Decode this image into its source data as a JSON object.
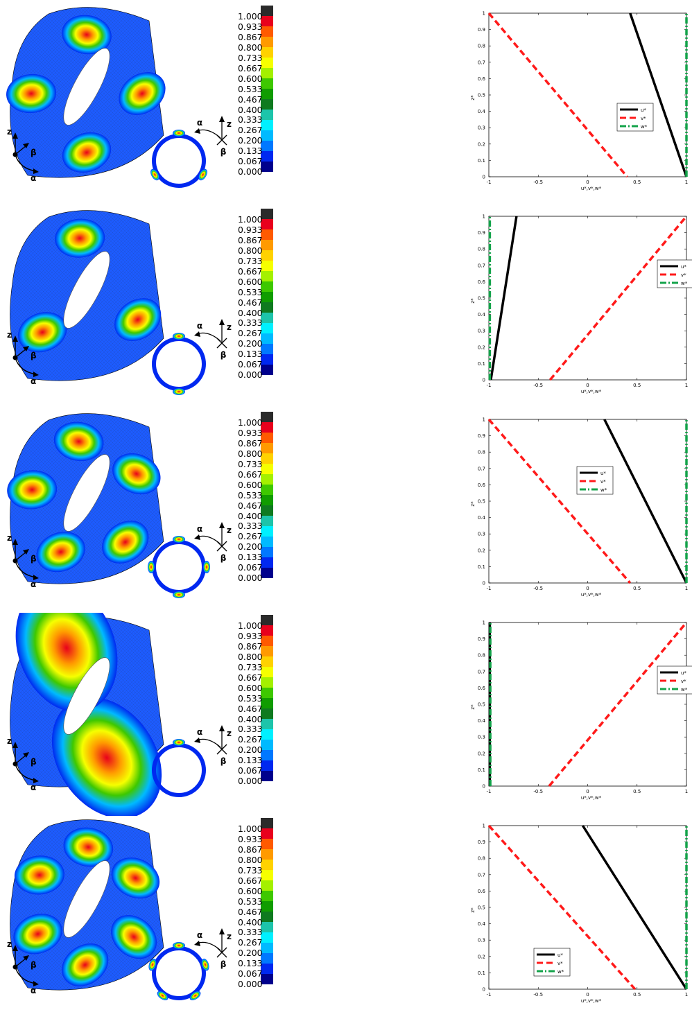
{
  "colorbar": {
    "labels": [
      "1.000",
      "0.933",
      "0.867",
      "0.800",
      "0.733",
      "0.667",
      "0.600",
      "0.533",
      "0.467",
      "0.400",
      "0.333",
      "0.267",
      "0.200",
      "0.133",
      "0.067",
      "0.000"
    ],
    "colors": [
      "#2a2a2a",
      "#e8001c",
      "#ff5a00",
      "#ff9a00",
      "#ffd200",
      "#f6ff00",
      "#a4f000",
      "#3ec800",
      "#109c00",
      "#0f7a1f",
      "#1dc4aa",
      "#00f0ff",
      "#00baff",
      "#0078ff",
      "#0028f0",
      "#00008c"
    ]
  },
  "axis_symbols": {
    "z": "z",
    "beta": "β",
    "alpha": "α"
  },
  "plot_text": {
    "ylabel": "z*",
    "xlabel": "u*,v*,w*",
    "xticks": [
      "-1",
      "-0.5",
      "0",
      "0.5",
      "1"
    ],
    "yticks": [
      "0",
      "0.1",
      "0.2",
      "0.3",
      "0.4",
      "0.5",
      "0.6",
      "0.7",
      "0.8",
      "0.9",
      "1"
    ],
    "legend": [
      "u*",
      "v*",
      "w*"
    ]
  },
  "series_colors": {
    "u": "#000000",
    "v": "#ff1a1a",
    "w": "#13a34a"
  },
  "chart_data": [
    {
      "type": "line",
      "xlim": [
        -1,
        1
      ],
      "ylim": [
        0,
        1
      ],
      "legend_position": "right-middle",
      "series": [
        {
          "name": "u*",
          "x": [
            0.43,
            1.0
          ],
          "y": [
            1,
            0
          ]
        },
        {
          "name": "v*",
          "x": [
            -1.0,
            0.4
          ],
          "y": [
            1,
            0
          ]
        },
        {
          "name": "w*",
          "x": [
            1.0,
            1.0
          ],
          "y": [
            0,
            1
          ]
        }
      ],
      "mode": {
        "lobes": 3
      }
    },
    {
      "type": "line",
      "xlim": [
        -1,
        1
      ],
      "ylim": [
        0,
        1
      ],
      "legend_position": "right-upper",
      "series": [
        {
          "name": "u*",
          "x": [
            -0.98,
            -0.72
          ],
          "y": [
            0,
            1
          ]
        },
        {
          "name": "v*",
          "x": [
            -0.38,
            1.0
          ],
          "y": [
            0,
            1
          ]
        },
        {
          "name": "w*",
          "x": [
            -0.99,
            -0.99
          ],
          "y": [
            0,
            1
          ]
        }
      ],
      "mode": {
        "lobes": 2
      }
    },
    {
      "type": "line",
      "xlim": [
        -1,
        1
      ],
      "ylim": [
        0,
        1
      ],
      "legend_position": "center",
      "series": [
        {
          "name": "u*",
          "x": [
            0.17,
            1.0
          ],
          "y": [
            1,
            0
          ]
        },
        {
          "name": "v*",
          "x": [
            -1.0,
            0.43
          ],
          "y": [
            1,
            0
          ]
        },
        {
          "name": "w*",
          "x": [
            1.0,
            1.0
          ],
          "y": [
            0,
            1
          ]
        }
      ],
      "mode": {
        "lobes": 4
      }
    },
    {
      "type": "line",
      "xlim": [
        -1,
        1
      ],
      "ylim": [
        0,
        1
      ],
      "legend_position": "right-upper",
      "series": [
        {
          "name": "u*",
          "x": [
            -0.99,
            -0.99
          ],
          "y": [
            0,
            1
          ]
        },
        {
          "name": "v*",
          "x": [
            -0.39,
            1.0
          ],
          "y": [
            0,
            1
          ]
        },
        {
          "name": "w*",
          "x": [
            -0.985,
            -0.985
          ],
          "y": [
            0,
            1
          ]
        }
      ],
      "mode": {
        "lobes": 1
      }
    },
    {
      "type": "line",
      "xlim": [
        -1,
        1
      ],
      "ylim": [
        0,
        1
      ],
      "legend_position": "lower-center",
      "series": [
        {
          "name": "u*",
          "x": [
            -0.05,
            1.0
          ],
          "y": [
            1,
            0
          ]
        },
        {
          "name": "v*",
          "x": [
            -1.0,
            0.48
          ],
          "y": [
            1,
            0
          ]
        },
        {
          "name": "w*",
          "x": [
            1.0,
            1.0
          ],
          "y": [
            0,
            1
          ]
        }
      ],
      "mode": {
        "lobes": 5
      }
    }
  ]
}
